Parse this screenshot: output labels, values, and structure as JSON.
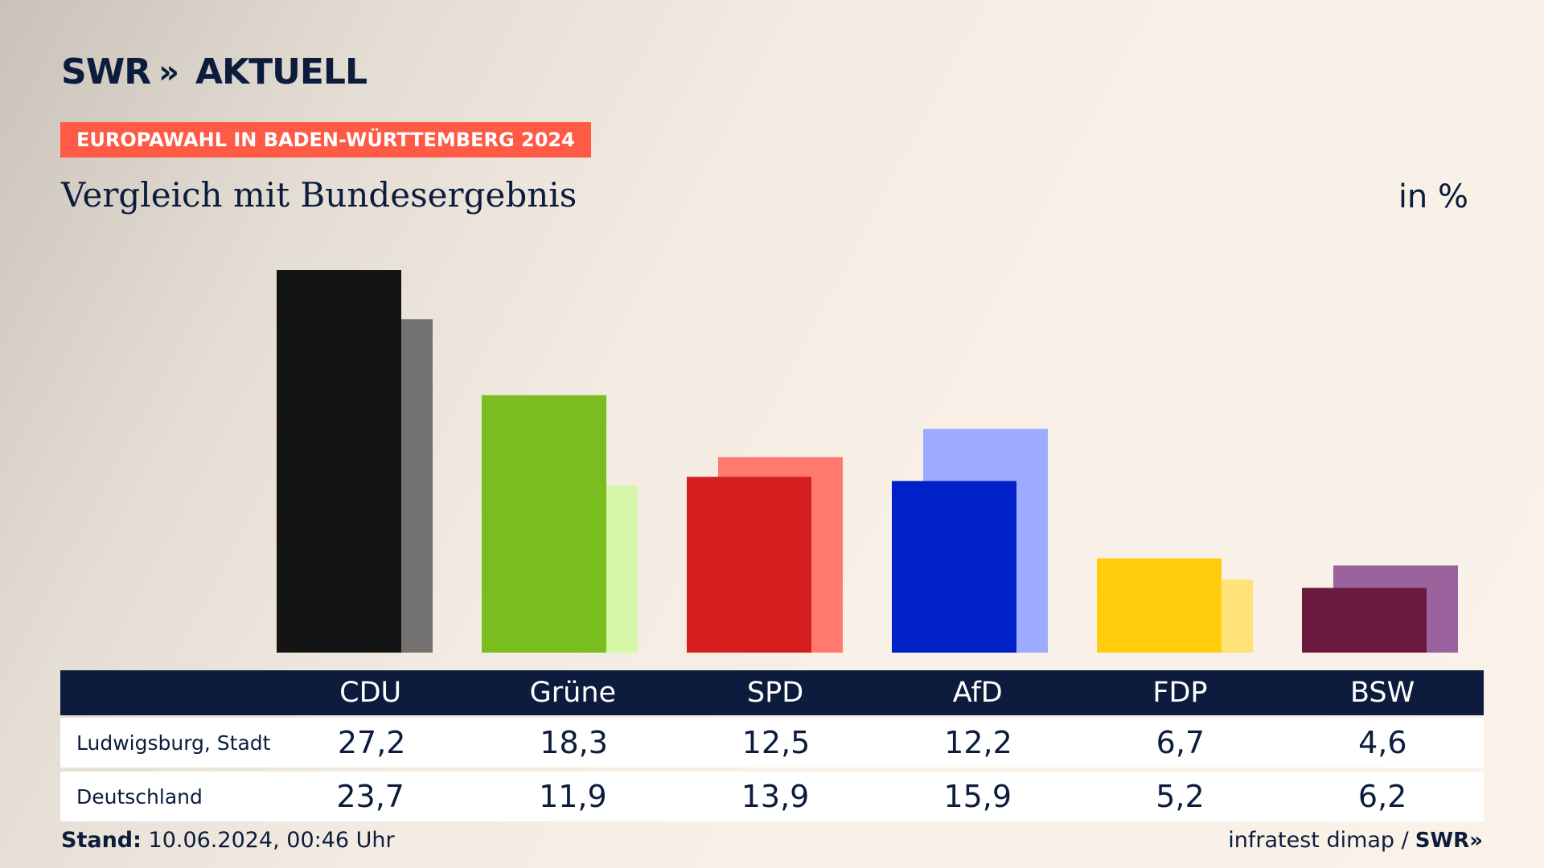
{
  "brand": {
    "name": "SWR",
    "chevrons": "»",
    "section": "AKTUELL"
  },
  "tag": "EUROPAWAHL IN BADEN-WÜRTTEMBERG 2024",
  "subtitle": "Vergleich mit Bundesergebnis",
  "unit": "in %",
  "chart_data": {
    "type": "bar",
    "categories": [
      "CDU",
      "Grüne",
      "SPD",
      "AfD",
      "FDP",
      "BSW"
    ],
    "series": [
      {
        "name": "Ludwigsburg, Stadt",
        "values": [
          27.2,
          18.3,
          12.5,
          12.2,
          6.7,
          4.6
        ],
        "colors": [
          "#141414",
          "#79bd1e",
          "#d51f1f",
          "#0021c8",
          "#ffcd0e",
          "#6a1a3e"
        ]
      },
      {
        "name": "Deutschland",
        "values": [
          23.7,
          11.9,
          13.9,
          15.9,
          5.2,
          6.2
        ],
        "colors": [
          "#737271",
          "#d6f7a8",
          "#ff7a6e",
          "#9dabff",
          "#ffe278",
          "#9a639d"
        ]
      }
    ],
    "table_values": {
      "ludwigsburg": [
        "27,2",
        "18,3",
        "12,5",
        "12,2",
        "6,7",
        "4,6"
      ],
      "deutschland": [
        "23,7",
        "11,9",
        "13,9",
        "15,9",
        "5,2",
        "6,2"
      ]
    },
    "ylim": [
      0,
      27.2
    ],
    "grid": false,
    "legend": "table-below"
  },
  "footer": {
    "stand_label": "Stand:",
    "stand_value": "10.06.2024, 00:46 Uhr",
    "source": "infratest dimap /",
    "source_brand": "SWR»"
  }
}
